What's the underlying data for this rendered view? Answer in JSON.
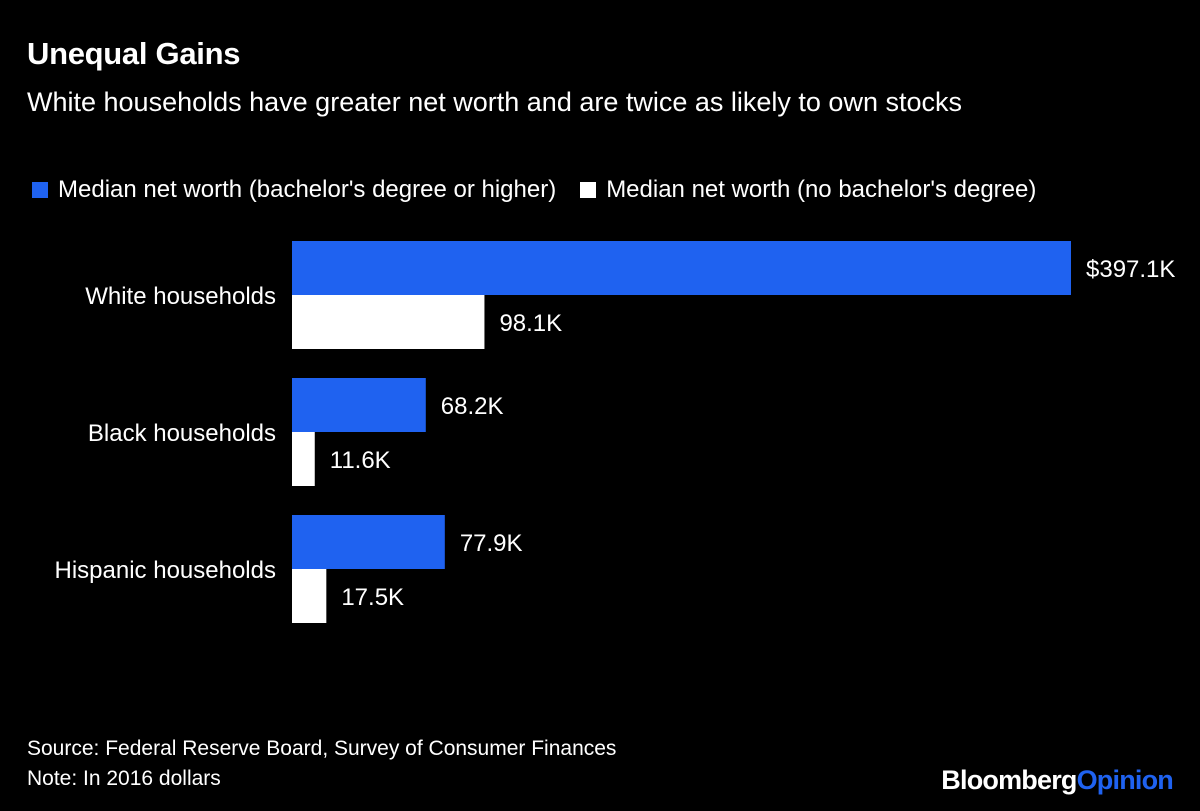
{
  "chart_data": {
    "type": "bar",
    "orientation": "horizontal",
    "title": "Unequal Gains",
    "subtitle": "White households have greater net worth and are twice as likely to own stocks",
    "categories": [
      "White households",
      "Black households",
      "Hispanic households"
    ],
    "series": [
      {
        "name": "Median net worth (bachelor's degree or higher)",
        "color": "#1f62f0",
        "values": [
          397.1,
          68.2,
          77.9
        ],
        "labels": [
          "$397.1K",
          "68.2K",
          "77.9K"
        ]
      },
      {
        "name": "Median net worth (no bachelor's degree)",
        "color": "#ffffff",
        "values": [
          98.1,
          11.6,
          17.5
        ],
        "labels": [
          "98.1K",
          "11.6K",
          "17.5K"
        ]
      }
    ],
    "xlim": [
      0,
      397.1
    ],
    "grid": false,
    "legend_position": "top-left"
  },
  "footer": {
    "source": "Source: Federal Reserve Board, Survey of Consumer Finances",
    "note": "Note: In 2016 dollars"
  },
  "brand": {
    "part1": "Bloomberg",
    "part2": "Opinion"
  }
}
